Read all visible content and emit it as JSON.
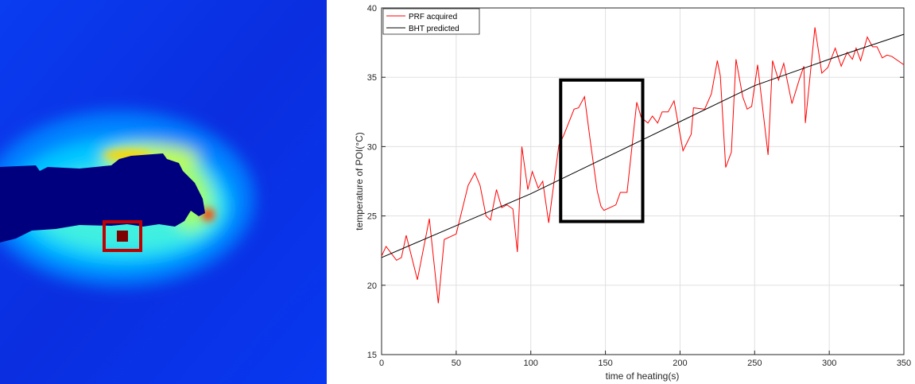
{
  "heatmap_image": {
    "colormap": "jet",
    "background_color": "#0a2ee0",
    "probe_color": "#00007f",
    "roi_box_color": "#c00000",
    "roi_point_color": "#7f0000"
  },
  "chart_data": {
    "type": "line",
    "title": "",
    "xlabel": "time of heating(s)",
    "ylabel": "temperature of POI(°C)",
    "xlim": [
      0,
      350
    ],
    "ylim": [
      15,
      40
    ],
    "xticks": [
      0,
      50,
      100,
      150,
      200,
      250,
      300,
      350
    ],
    "yticks": [
      15,
      20,
      25,
      30,
      35,
      40
    ],
    "grid": true,
    "legend": "top-left",
    "series": [
      {
        "name": "PRF acquired",
        "color": "#ff0000",
        "x": [
          0,
          3,
          10,
          13.3,
          16.5,
          24,
          28,
          32,
          38,
          42,
          50,
          58,
          62.5,
          66,
          70,
          73,
          77,
          80.5,
          84,
          88,
          91,
          94,
          98,
          101,
          105,
          108,
          112,
          118.8,
          122,
          129,
          132,
          136,
          140,
          144.5,
          147,
          149,
          157,
          160,
          164.5,
          171,
          174,
          178.5,
          181.5,
          185,
          188,
          192,
          196,
          202,
          207.5,
          209,
          216.5,
          221,
          225,
          227,
          230.6,
          234.4,
          237.5,
          242,
          245,
          248,
          252,
          259,
          262,
          266,
          269.5,
          275,
          279.8,
          283,
          284,
          290.4,
          295,
          299,
          304,
          308,
          312,
          315.5,
          318,
          321,
          325.5,
          329,
          332,
          335.5,
          338.7,
          342,
          350
        ],
        "y": [
          22.1,
          22.8,
          21.8,
          22,
          23.6,
          20.4,
          22.6,
          24.8,
          18.7,
          23.3,
          23.7,
          27.2,
          28.1,
          27.2,
          25,
          24.7,
          26.9,
          25.6,
          25.8,
          25.5,
          22.4,
          30,
          26.9,
          28.2,
          27,
          27.5,
          24.5,
          30.1,
          30.8,
          32.7,
          32.8,
          33.6,
          30.3,
          26.8,
          25.7,
          25.4,
          25.8,
          26.7,
          26.7,
          33.2,
          32.1,
          31.7,
          32.2,
          31.7,
          32.5,
          32.5,
          33.3,
          29.7,
          30.9,
          32.8,
          32.7,
          33.8,
          36.2,
          35.1,
          28.5,
          29.6,
          36.3,
          33.6,
          32.7,
          32.9,
          35.9,
          29.4,
          36.2,
          34.8,
          36,
          33.1,
          34.8,
          35.8,
          31.7,
          38.6,
          35.3,
          35.7,
          37.1,
          35.8,
          36.8,
          36.3,
          37.1,
          36.2,
          37.9,
          37.2,
          37.2,
          36.4,
          36.6,
          36.5,
          35.9
        ]
      },
      {
        "name": "BHT predicted",
        "color": "#000000",
        "x": [
          0,
          50,
          100,
          150,
          175,
          200,
          250,
          300,
          350
        ],
        "y": [
          22,
          24.3,
          26.6,
          29.2,
          30.5,
          31.8,
          34.4,
          36.3,
          38.1
        ]
      }
    ],
    "annotations": [
      {
        "type": "rectangle",
        "x": [
          120,
          175
        ],
        "y": [
          24.6,
          34.8
        ],
        "color": "#000000"
      }
    ]
  }
}
